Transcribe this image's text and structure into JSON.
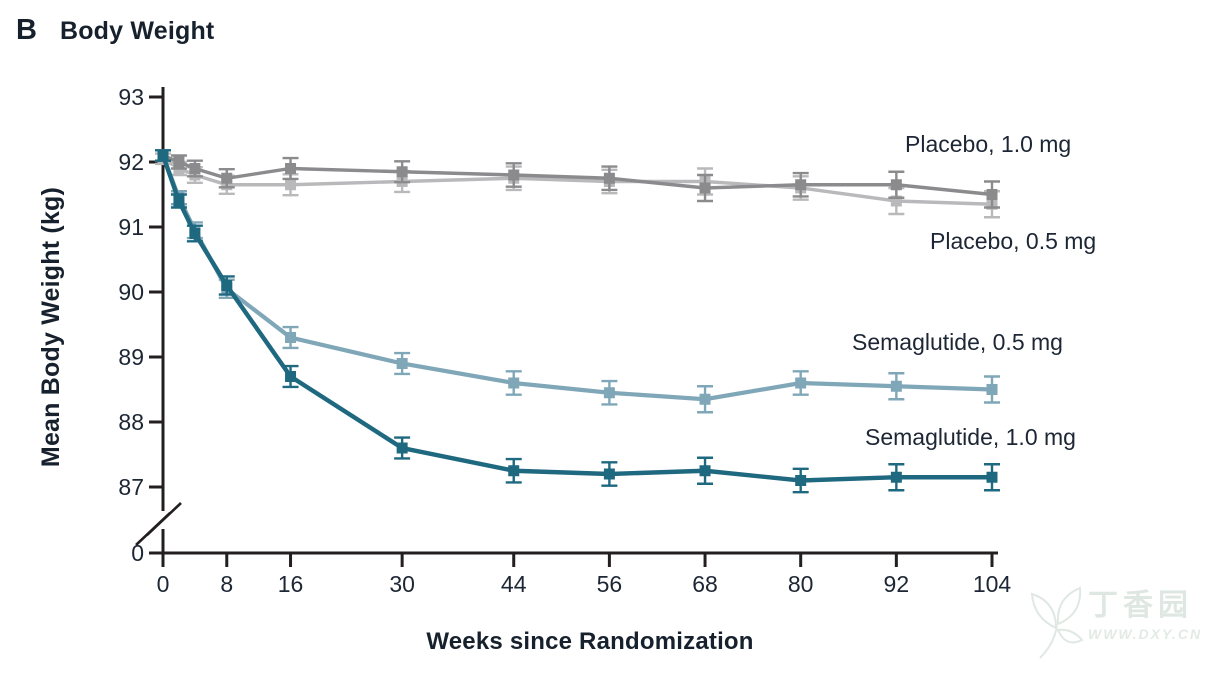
{
  "header": {
    "panel_letter": "B",
    "title": "Body Weight"
  },
  "colors": {
    "axis": "#231f20",
    "text": "#1d2634",
    "background": "#ffffff",
    "placebo_05": "#b9b9bb",
    "placebo_10": "#8b8b8d",
    "semaglutide_05": "#7fa7b8",
    "semaglutide_10": "#1e6880",
    "watermark": "#dfe7e2"
  },
  "watermark": {
    "name": "丁香园",
    "url": "WWW.DXY.CN"
  },
  "chart_data": {
    "type": "line",
    "title": "B Body Weight",
    "xlabel": "Weeks since Randomization",
    "ylabel": "Mean Body Weight (kg)",
    "x_ticks": [
      0,
      8,
      16,
      30,
      44,
      56,
      68,
      80,
      92,
      104
    ],
    "y_ticks": [
      93,
      92,
      91,
      90,
      89,
      88,
      87
    ],
    "y_origin_label": "0",
    "y_axis_break": true,
    "ylim": [
      87,
      93
    ],
    "xlim": [
      0,
      104
    ],
    "grid": false,
    "legend_position": "inline-right-of-lines",
    "x": [
      0,
      2,
      4,
      8,
      16,
      30,
      44,
      56,
      68,
      80,
      92,
      104
    ],
    "error_half": [
      0.08,
      0.1,
      0.12,
      0.14,
      0.16,
      0.16,
      0.18,
      0.18,
      0.2,
      0.18,
      0.2,
      0.2
    ],
    "series": [
      {
        "name": "Placebo, 0.5 mg",
        "color": "#b9b9bb",
        "line_width": 3.4,
        "values": [
          92.05,
          91.9,
          91.8,
          91.65,
          91.65,
          91.7,
          91.75,
          91.7,
          91.7,
          91.6,
          91.4,
          91.35
        ]
      },
      {
        "name": "Placebo, 1.0 mg",
        "color": "#8b8b8d",
        "line_width": 3.4,
        "values": [
          92.1,
          92.0,
          91.9,
          91.75,
          91.9,
          91.85,
          91.8,
          91.75,
          91.6,
          91.65,
          91.65,
          91.5
        ]
      },
      {
        "name": "Semaglutide, 0.5 mg",
        "color": "#7fa7b8",
        "line_width": 4.2,
        "values": [
          92.1,
          91.45,
          90.95,
          90.05,
          89.3,
          88.9,
          88.6,
          88.45,
          88.35,
          88.6,
          88.55,
          88.5
        ]
      },
      {
        "name": "Semaglutide, 1.0 mg",
        "color": "#1e6880",
        "line_width": 4.4,
        "values": [
          92.1,
          91.4,
          90.9,
          90.1,
          88.7,
          87.6,
          87.25,
          87.2,
          87.25,
          87.1,
          87.15,
          87.15
        ]
      }
    ]
  }
}
